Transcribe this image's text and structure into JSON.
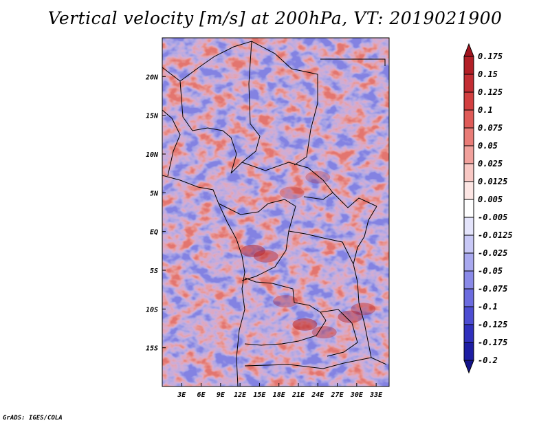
{
  "chart_data": {
    "type": "heatmap",
    "title": "Vertical velocity [m/s] at 200hPa, VT: 2019021900",
    "variable": "Vertical velocity",
    "units": "m/s",
    "level": "200hPa",
    "valid_time": "2019021900",
    "xlabel": "",
    "ylabel": "",
    "x_ticks": [
      "3E",
      "6E",
      "9E",
      "12E",
      "15E",
      "18E",
      "21E",
      "24E",
      "27E",
      "30E",
      "33E"
    ],
    "x_tick_values": [
      3,
      6,
      9,
      12,
      15,
      18,
      21,
      24,
      27,
      30,
      33
    ],
    "y_ticks": [
      "20N",
      "15N",
      "10N",
      "5N",
      "EQ",
      "5S",
      "10S",
      "15S"
    ],
    "y_tick_values": [
      20,
      15,
      10,
      5,
      0,
      -5,
      -10,
      -15
    ],
    "xlim": [
      0,
      35
    ],
    "ylim": [
      -20,
      25
    ],
    "colorbar_levels": [
      "0.175",
      "0.15",
      "0.125",
      "0.1",
      "0.075",
      "0.05",
      "0.025",
      "0.0125",
      "0.005",
      "-0.005",
      "-0.0125",
      "-0.025",
      "-0.05",
      "-0.075",
      "-0.1",
      "-0.125",
      "-0.175",
      "-0.2"
    ],
    "colorbar_colors": [
      "#a0141e",
      "#b21f26",
      "#c32d33",
      "#d23f40",
      "#df5b58",
      "#e97c77",
      "#f1a19c",
      "#f8c8c4",
      "#fde6e4",
      "#ffffff",
      "#e4e4fb",
      "#c8c8f6",
      "#a9a9ef",
      "#8a8ae8",
      "#6c6cdf",
      "#4d4dd2",
      "#3030bd",
      "#1d1da3",
      "#13138a"
    ],
    "legend_position": "right"
  },
  "footer": "GrADS: IGES/COLA"
}
